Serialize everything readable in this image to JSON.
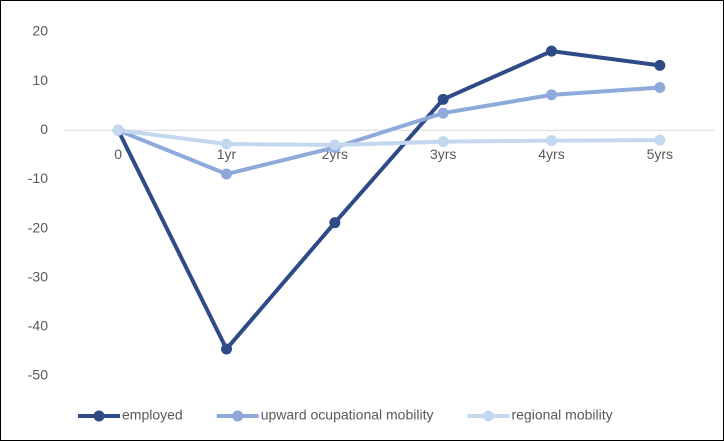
{
  "chart_data": {
    "type": "line",
    "categories": [
      "0",
      "1yr",
      "2yrs",
      "3yrs",
      "4yrs",
      "5yrs"
    ],
    "series": [
      {
        "name": "employed",
        "color": "#2f4b87",
        "values": [
          0,
          -44.5,
          -18.8,
          6.3,
          16.1,
          13.2
        ]
      },
      {
        "name": "upward ocupational mobility",
        "color": "#8eaadb",
        "values": [
          0,
          -8.9,
          -3.5,
          3.5,
          7.2,
          8.7
        ]
      },
      {
        "name": "regional mobility",
        "color": "#c3d8ef",
        "values": [
          0,
          -2.8,
          -3.0,
          -2.3,
          -2.1,
          -2.0
        ]
      }
    ],
    "ylim": [
      -50,
      20
    ],
    "yticks": [
      -50,
      -40,
      -30,
      -20,
      -10,
      0,
      10,
      20
    ],
    "grid": false,
    "legend": "bottom"
  }
}
